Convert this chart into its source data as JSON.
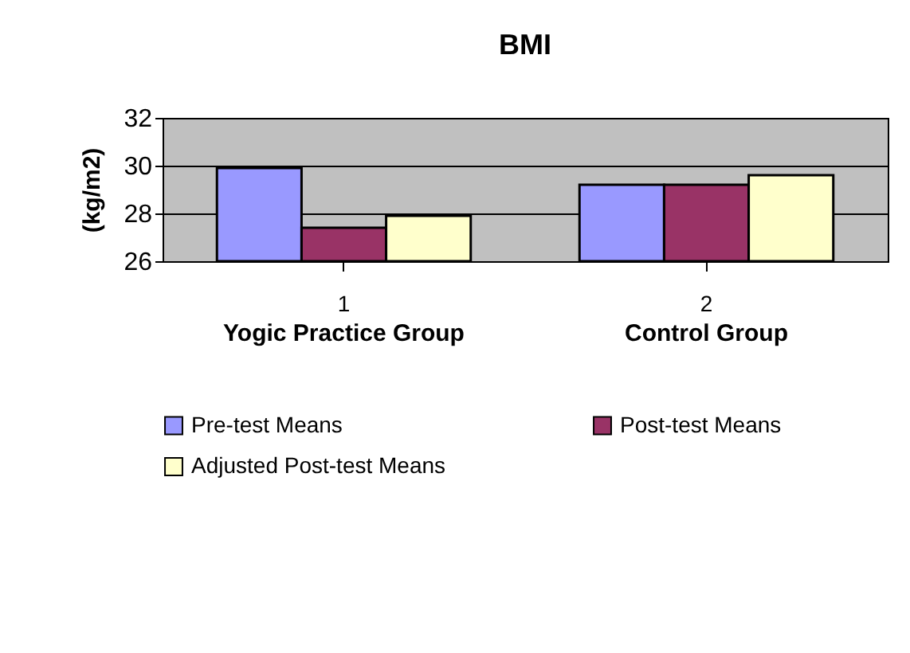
{
  "chart_data": {
    "type": "bar",
    "title": "BMI",
    "ylabel": "(kg/m2)",
    "categories": [
      "1",
      "2"
    ],
    "series": [
      {
        "name": "Pre-test Means",
        "color": "#9999ff",
        "values": [
          29.9,
          29.2
        ]
      },
      {
        "name": "Post-test Means",
        "color": "#993366",
        "values": [
          27.4,
          29.2
        ]
      },
      {
        "name": "Adjusted Post-test Means",
        "color": "#ffffcc",
        "values": [
          27.9,
          29.6
        ]
      }
    ],
    "ylim": [
      26,
      32
    ],
    "yticks": [
      26,
      28,
      30,
      32
    ],
    "grid": "y",
    "legend": "bottom",
    "annotations": [
      "Yogic Practice Group",
      "Control Group"
    ]
  }
}
